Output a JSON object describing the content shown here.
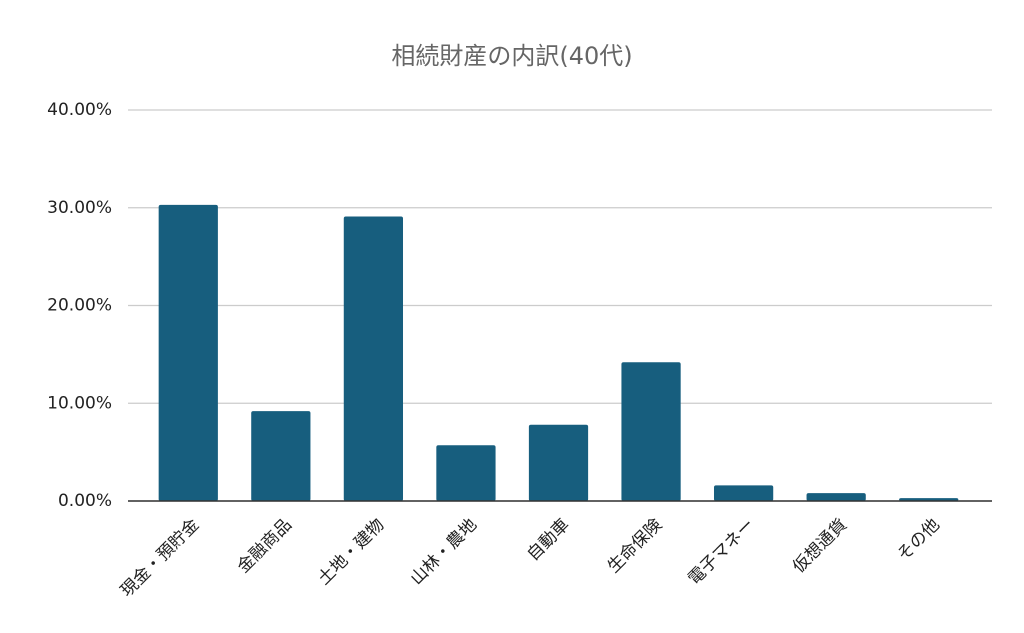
{
  "chart_data": {
    "type": "bar",
    "title": "相続財産の内訳(40代)",
    "categories": [
      "現金・預貯金",
      "金融商品",
      "土地・建物",
      "山林・農地",
      "自動車",
      "生命保険",
      "電子マネー",
      "仮想通貨",
      "その他"
    ],
    "values": [
      30.3,
      9.2,
      29.1,
      5.7,
      7.8,
      14.2,
      1.6,
      0.8,
      0.3
    ],
    "color": "#175e7e",
    "ylim": [
      0,
      40
    ],
    "yticks": [
      {
        "value": 0,
        "label": "0.00%"
      },
      {
        "value": 10,
        "label": "10.00%"
      },
      {
        "value": 20,
        "label": "20.00%"
      },
      {
        "value": 30,
        "label": "30.00%"
      },
      {
        "value": 40,
        "label": "40.00%"
      }
    ],
    "grid": true
  }
}
